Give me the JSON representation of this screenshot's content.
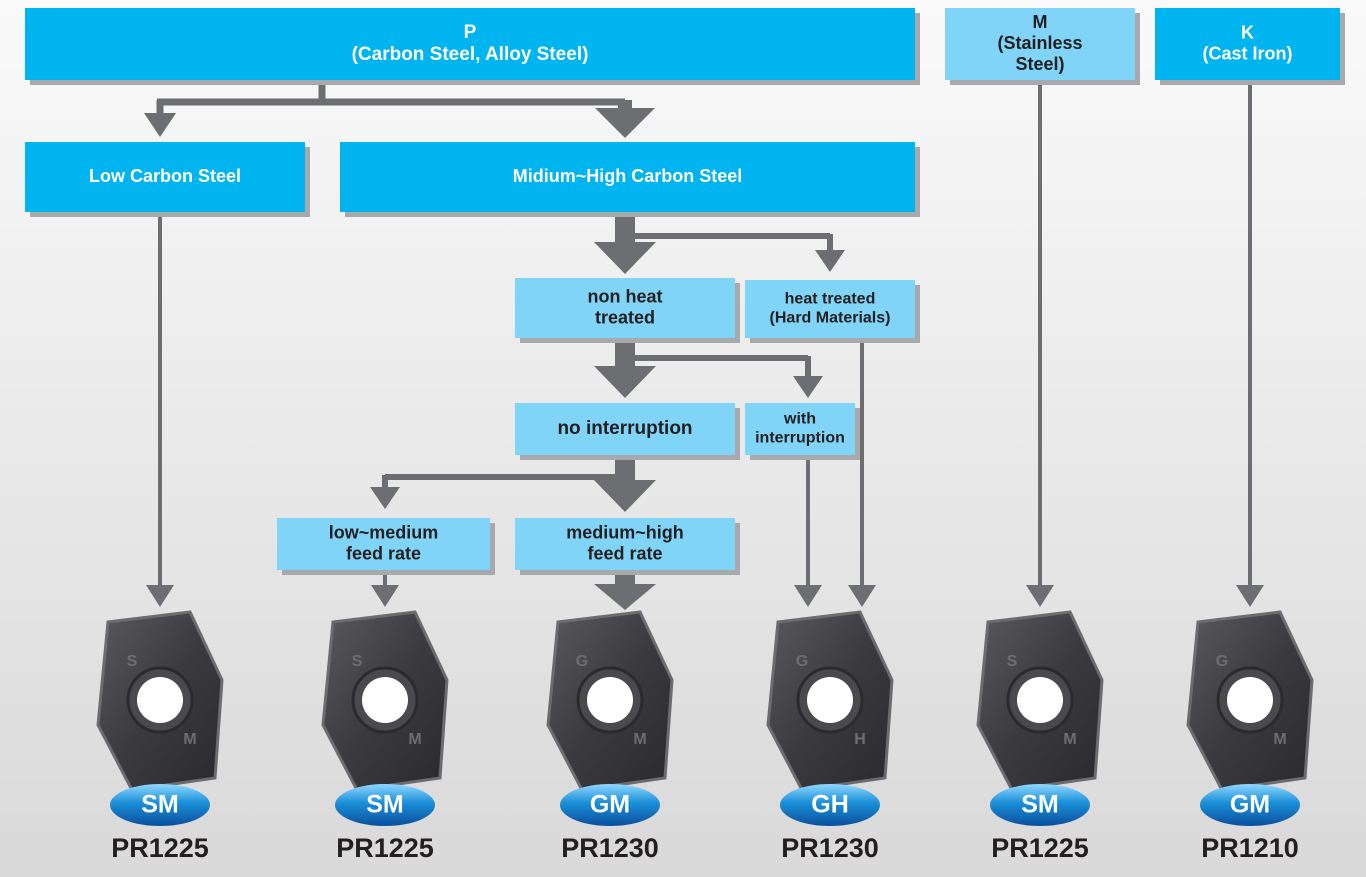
{
  "nodes": [
    {
      "lines": [
        "P",
        "(Carbon Steel, Alloy Steel)"
      ]
    },
    {
      "lines": [
        "M",
        "(Stainless",
        "Steel)"
      ]
    },
    {
      "lines": [
        "K",
        "(Cast Iron)"
      ]
    },
    {
      "lines": [
        "Low Carbon Steel"
      ]
    },
    {
      "lines": [
        "Midium~High Carbon Steel"
      ]
    },
    {
      "lines": [
        "non heat",
        "treated"
      ]
    },
    {
      "lines": [
        "heat treated",
        "(Hard Materials)"
      ]
    },
    {
      "lines": [
        "no interruption"
      ]
    },
    {
      "lines": [
        "with",
        "interruption"
      ]
    },
    {
      "lines": [
        "low~medium",
        "feed rate"
      ]
    },
    {
      "lines": [
        "medium~high",
        "feed rate"
      ]
    }
  ],
  "products": [
    {
      "marks": [
        "S",
        "M"
      ],
      "chipbreaker": "SM",
      "grade": "PR1225"
    },
    {
      "marks": [
        "S",
        "M"
      ],
      "chipbreaker": "SM",
      "grade": "PR1225"
    },
    {
      "marks": [
        "G",
        "M"
      ],
      "chipbreaker": "GM",
      "grade": "PR1230"
    },
    {
      "marks": [
        "G",
        "H"
      ],
      "chipbreaker": "GH",
      "grade": "PR1230"
    },
    {
      "marks": [
        "S",
        "M"
      ],
      "chipbreaker": "SM",
      "grade": "PR1225"
    },
    {
      "marks": [
        "G",
        "M"
      ],
      "chipbreaker": "GM",
      "grade": "PR1210"
    }
  ]
}
